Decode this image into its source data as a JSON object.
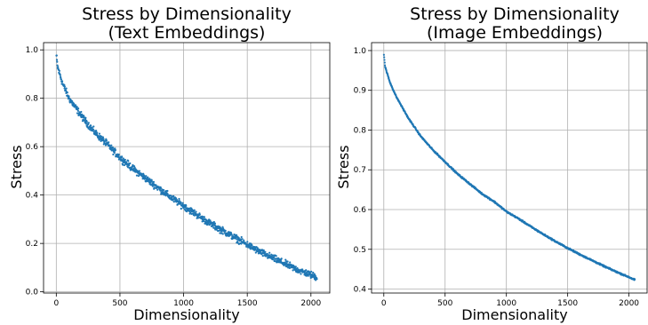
{
  "chart_data": [
    {
      "type": "scatter",
      "title_lines": [
        "Stress by Dimensionality",
        "(Text Embeddings)"
      ],
      "xlabel": "Dimensionality",
      "ylabel": "Stress",
      "xlim": [
        -100,
        2148
      ],
      "ylim": [
        -0.005,
        1.03
      ],
      "xticks": [
        0,
        500,
        1000,
        1500,
        2000
      ],
      "yticks": [
        0.0,
        0.2,
        0.4,
        0.6,
        0.8,
        1.0
      ],
      "ytick_labels": [
        "0.0",
        "0.2",
        "0.4",
        "0.6",
        "0.8",
        "1.0"
      ],
      "grid": true,
      "marker_color": "#1f77b4",
      "x_range": [
        1,
        2048
      ],
      "noise": 0.012,
      "curve": [
        [
          1,
          0.975
        ],
        [
          10,
          0.93
        ],
        [
          50,
          0.86
        ],
        [
          100,
          0.8
        ],
        [
          200,
          0.725
        ],
        [
          300,
          0.66
        ],
        [
          400,
          0.61
        ],
        [
          500,
          0.555
        ],
        [
          600,
          0.51
        ],
        [
          700,
          0.47
        ],
        [
          800,
          0.43
        ],
        [
          900,
          0.39
        ],
        [
          1000,
          0.355
        ],
        [
          1100,
          0.32
        ],
        [
          1200,
          0.285
        ],
        [
          1300,
          0.255
        ],
        [
          1400,
          0.225
        ],
        [
          1500,
          0.195
        ],
        [
          1600,
          0.165
        ],
        [
          1700,
          0.14
        ],
        [
          1800,
          0.115
        ],
        [
          1900,
          0.09
        ],
        [
          2000,
          0.07
        ],
        [
          2048,
          0.06
        ]
      ]
    },
    {
      "type": "scatter",
      "title_lines": [
        "Stress by Dimensionality",
        "(Image Embeddings)"
      ],
      "xlabel": "Dimensionality",
      "ylabel": "Stress",
      "xlim": [
        -100,
        2148
      ],
      "ylim": [
        0.39,
        1.02
      ],
      "xticks": [
        0,
        500,
        1000,
        1500,
        2000
      ],
      "yticks": [
        0.4,
        0.5,
        0.6,
        0.7,
        0.8,
        0.9,
        1.0
      ],
      "ytick_labels": [
        "0.4",
        "0.5",
        "0.6",
        "0.7",
        "0.8",
        "0.9",
        "1.0"
      ],
      "grid": true,
      "marker_color": "#1f77b4",
      "x_range": [
        1,
        2048
      ],
      "noise": 0.0015,
      "curve": [
        [
          1,
          0.99
        ],
        [
          10,
          0.96
        ],
        [
          50,
          0.92
        ],
        [
          100,
          0.885
        ],
        [
          200,
          0.83
        ],
        [
          300,
          0.785
        ],
        [
          400,
          0.75
        ],
        [
          500,
          0.72
        ],
        [
          600,
          0.69
        ],
        [
          700,
          0.665
        ],
        [
          800,
          0.64
        ],
        [
          900,
          0.62
        ],
        [
          1000,
          0.595
        ],
        [
          1100,
          0.577
        ],
        [
          1200,
          0.557
        ],
        [
          1300,
          0.538
        ],
        [
          1400,
          0.52
        ],
        [
          1500,
          0.503
        ],
        [
          1600,
          0.487
        ],
        [
          1700,
          0.472
        ],
        [
          1800,
          0.457
        ],
        [
          1900,
          0.443
        ],
        [
          2000,
          0.43
        ],
        [
          2048,
          0.423
        ]
      ]
    }
  ]
}
